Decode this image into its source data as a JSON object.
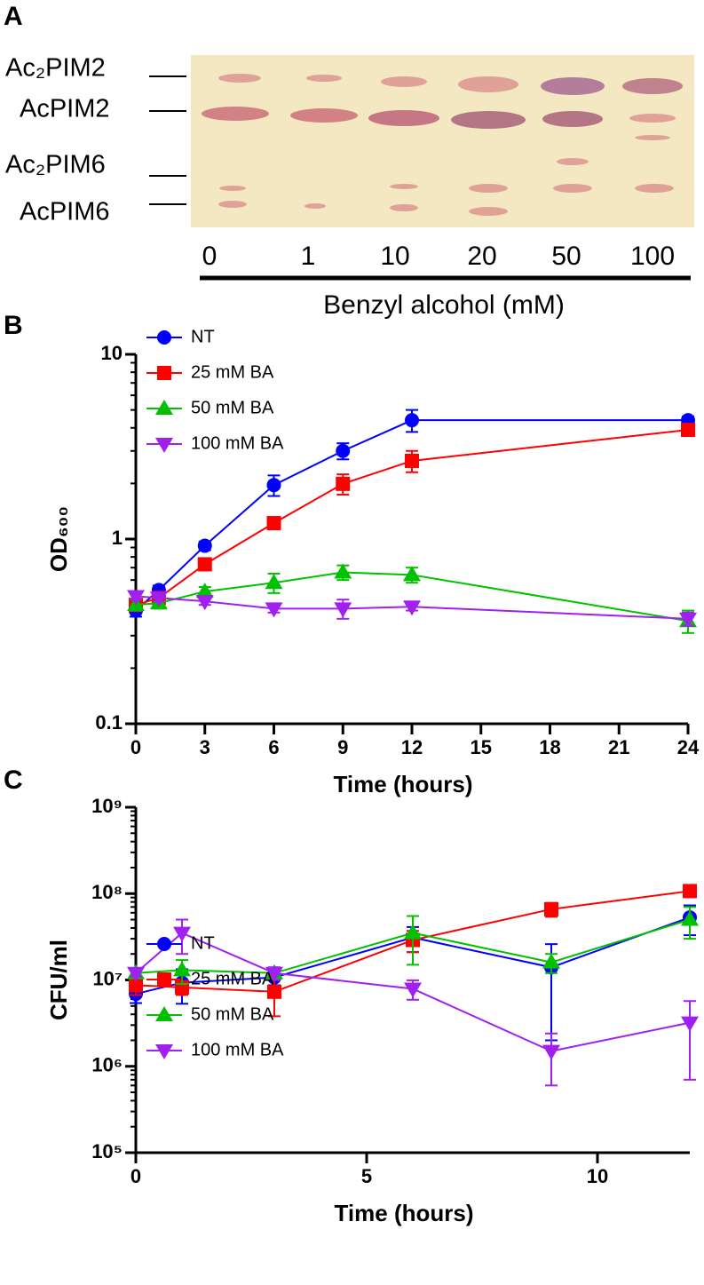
{
  "panel_a": {
    "panel": "A",
    "band_labels": [
      "Ac₂PIM2",
      "AcPIM2",
      "Ac₂PIM6",
      "AcPIM6"
    ],
    "lane_labels": [
      "0",
      "1",
      "10",
      "20",
      "50",
      "100"
    ],
    "xlabel": "Benzyl alcohol (mM)"
  },
  "chart_data": [
    {
      "type": "line",
      "panel": "B",
      "xlabel": "Time (hours)",
      "ylabel": "OD₆₀₀",
      "log_y": true,
      "legend": "top-left",
      "xlim": [
        0,
        24
      ],
      "xticks": [
        0,
        3,
        6,
        9,
        12,
        15,
        18,
        21,
        24
      ],
      "ylim": [
        0.1,
        10
      ],
      "yticks": [
        0.1,
        1,
        10
      ],
      "x": [
        0,
        1,
        3,
        6,
        9,
        12,
        24
      ],
      "series": [
        {
          "name": "NT",
          "color": "#0000ff",
          "marker": "circle",
          "values": [
            0.41,
            0.53,
            0.92,
            1.96,
            3.0,
            4.4,
            4.4
          ],
          "errors": [
            0.03,
            0.03,
            0.05,
            0.25,
            0.3,
            0.6,
            0.2
          ]
        },
        {
          "name": "25 mM BA",
          "color": "#ff0000",
          "marker": "square",
          "values": [
            0.44,
            0.48,
            0.73,
            1.22,
            1.99,
            2.65,
            3.9
          ],
          "errors": [
            0.03,
            0.03,
            0.04,
            0.08,
            0.25,
            0.35,
            0.2
          ]
        },
        {
          "name": "50 mM BA",
          "color": "#00c000",
          "marker": "triangle-up",
          "values": [
            0.44,
            0.45,
            0.52,
            0.58,
            0.66,
            0.64,
            0.36
          ],
          "errors": [
            0.03,
            0.03,
            0.03,
            0.07,
            0.06,
            0.06,
            0.05
          ]
        },
        {
          "name": "100 mM BA",
          "color": "#a020f0",
          "marker": "triangle-down",
          "values": [
            0.49,
            0.48,
            0.46,
            0.42,
            0.42,
            0.43,
            0.37
          ],
          "errors": [
            0.02,
            0.02,
            0.02,
            0.02,
            0.05,
            0.02,
            0.03
          ]
        }
      ]
    },
    {
      "type": "line",
      "panel": "C",
      "xlabel": "Time (hours)",
      "ylabel": "CFU/ml",
      "log_y": true,
      "legend": "bottom-left",
      "xlim": [
        0,
        12
      ],
      "xticks": [
        0,
        5,
        10
      ],
      "ylim": [
        100000,
        1000000000
      ],
      "yticks": [
        {
          "value": 100000,
          "label": "10⁵"
        },
        {
          "value": 1000000,
          "label": "10⁶"
        },
        {
          "value": 10000000,
          "label": "10⁷"
        },
        {
          "value": 100000000,
          "label": "10⁸"
        },
        {
          "value": 1000000000,
          "label": "10⁹"
        }
      ],
      "x": [
        0,
        1,
        3,
        6,
        9,
        12
      ],
      "series": [
        {
          "name": "NT",
          "color": "#0000ff",
          "marker": "circle",
          "values": [
            6900000,
            9300000,
            10700000,
            31000000,
            14000000,
            53000000
          ],
          "errors": [
            1500000,
            4000000,
            2000000,
            10000000,
            12000000,
            20000000
          ]
        },
        {
          "name": "25 mM BA",
          "color": "#ff0000",
          "marker": "square",
          "values": [
            8700000,
            8200000,
            7300000,
            29000000,
            66000000,
            107000000
          ],
          "errors": [
            2000000,
            1500000,
            3500000,
            8000000,
            12000000,
            15000000
          ]
        },
        {
          "name": "50 mM BA",
          "color": "#00c000",
          "marker": "triangle-up",
          "values": [
            12000000,
            13000000,
            12000000,
            35000000,
            16000000,
            50000000
          ],
          "errors": [
            1500000,
            4000000,
            2000000,
            20000000,
            4000000,
            20000000
          ]
        },
        {
          "name": "100 mM BA",
          "color": "#a020f0",
          "marker": "triangle-down",
          "values": [
            12000000,
            35000000,
            12000000,
            7900000,
            1500000,
            3200000
          ],
          "errors": [
            1000000,
            15000000,
            2000000,
            2000000,
            900000,
            2500000
          ]
        }
      ]
    }
  ]
}
